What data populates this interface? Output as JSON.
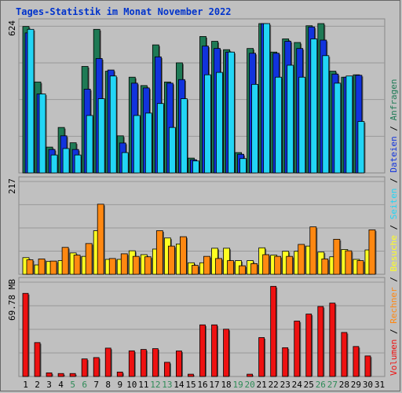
{
  "title": "Tages-Statistik im Monat November 2022",
  "colors": {
    "anfragen": "#1E7A55",
    "dateien": "#1133DD",
    "seiten": "#22D5F5",
    "besuche": "#FFFF22",
    "rechner": "#FF8811",
    "volumen": "#EE1111",
    "weekend": "#2E8B57",
    "weekday": "#000000",
    "panel": "#C0C0C0",
    "grid": "#999999"
  },
  "legend": {
    "volumen": "Volumen",
    "rechner": "Rechner",
    "besuche": "Besuche",
    "seiten": "Seiten",
    "dateien": "Dateien",
    "anfragen": "Anfragen",
    "sep": "/"
  },
  "chart_data": [
    {
      "type": "bar",
      "panel": "top",
      "max_label": "624",
      "ylim": [
        0,
        624
      ],
      "categories": [
        "1",
        "2",
        "3",
        "4",
        "5",
        "6",
        "7",
        "8",
        "9",
        "10",
        "11",
        "12",
        "13",
        "14",
        "15",
        "16",
        "17",
        "18",
        "19",
        "20",
        "21",
        "22",
        "23",
        "24",
        "25",
        "26",
        "27",
        "28",
        "29",
        "30",
        "31"
      ],
      "weekend_days": [
        "5",
        "6",
        "12",
        "13",
        "19",
        "20",
        "26",
        "27"
      ],
      "series": [
        {
          "key": "anfragen",
          "values": [
            612,
            380,
            108,
            190,
            126,
            445,
            600,
            425,
            155,
            400,
            365,
            535,
            380,
            460,
            62,
            570,
            550,
            515,
            85,
            520,
            624,
            505,
            560,
            545,
            615,
            624,
            425,
            400,
            410,
            0,
            0
          ]
        },
        {
          "key": "dateien",
          "values": [
            585,
            330,
            98,
            155,
            98,
            350,
            478,
            430,
            125,
            375,
            355,
            485,
            375,
            390,
            55,
            530,
            520,
            505,
            78,
            500,
            624,
            500,
            550,
            520,
            610,
            555,
            413,
            400,
            408,
            0,
            0
          ]
        },
        {
          "key": "seiten",
          "values": [
            600,
            330,
            75,
            102,
            75,
            240,
            310,
            405,
            85,
            240,
            250,
            290,
            190,
            310,
            50,
            410,
            420,
            505,
            60,
            370,
            624,
            400,
            450,
            400,
            560,
            490,
            375,
            405,
            215,
            0,
            0
          ]
        }
      ]
    },
    {
      "type": "bar",
      "panel": "middle",
      "max_label": "217",
      "ylim": [
        0,
        217
      ],
      "categories": [
        "1",
        "2",
        "3",
        "4",
        "5",
        "6",
        "7",
        "8",
        "9",
        "10",
        "11",
        "12",
        "13",
        "14",
        "15",
        "16",
        "17",
        "18",
        "19",
        "20",
        "21",
        "22",
        "23",
        "24",
        "25",
        "26",
        "27",
        "28",
        "29",
        "30",
        "31"
      ],
      "series": [
        {
          "key": "besuche",
          "values": [
            39,
            22,
            30,
            32,
            50,
            42,
            102,
            35,
            35,
            55,
            46,
            59,
            85,
            71,
            27,
            27,
            61,
            61,
            32,
            32,
            62,
            45,
            54,
            54,
            66,
            52,
            41,
            58,
            35,
            57,
            0
          ]
        },
        {
          "key": "rechner",
          "values": [
            34,
            36,
            31,
            63,
            45,
            72,
            164,
            37,
            48,
            42,
            41,
            102,
            66,
            88,
            21,
            42,
            37,
            32,
            20,
            25,
            46,
            42,
            42,
            70,
            111,
            36,
            82,
            55,
            32,
            104,
            0
          ]
        }
      ]
    },
    {
      "type": "bar",
      "panel": "bottom",
      "max_label": "69.78 MB",
      "ylim": [
        0,
        69.78
      ],
      "categories": [
        "1",
        "2",
        "3",
        "4",
        "5",
        "6",
        "7",
        "8",
        "9",
        "10",
        "11",
        "12",
        "13",
        "14",
        "15",
        "16",
        "17",
        "18",
        "19",
        "20",
        "21",
        "22",
        "23",
        "24",
        "25",
        "26",
        "27",
        "28",
        "29",
        "30",
        "31"
      ],
      "series": [
        {
          "key": "volumen",
          "values": [
            61.5,
            25.1,
            2.7,
            2.2,
            2.2,
            13.0,
            14.0,
            21.0,
            3.3,
            19.0,
            20.0,
            20.6,
            10.5,
            18.9,
            1.7,
            38.2,
            38.2,
            35.0,
            0,
            1.7,
            28.8,
            66.7,
            21.3,
            41.0,
            46.2,
            51.8,
            54.3,
            32.6,
            22.2,
            15.2,
            0
          ]
        }
      ]
    }
  ]
}
